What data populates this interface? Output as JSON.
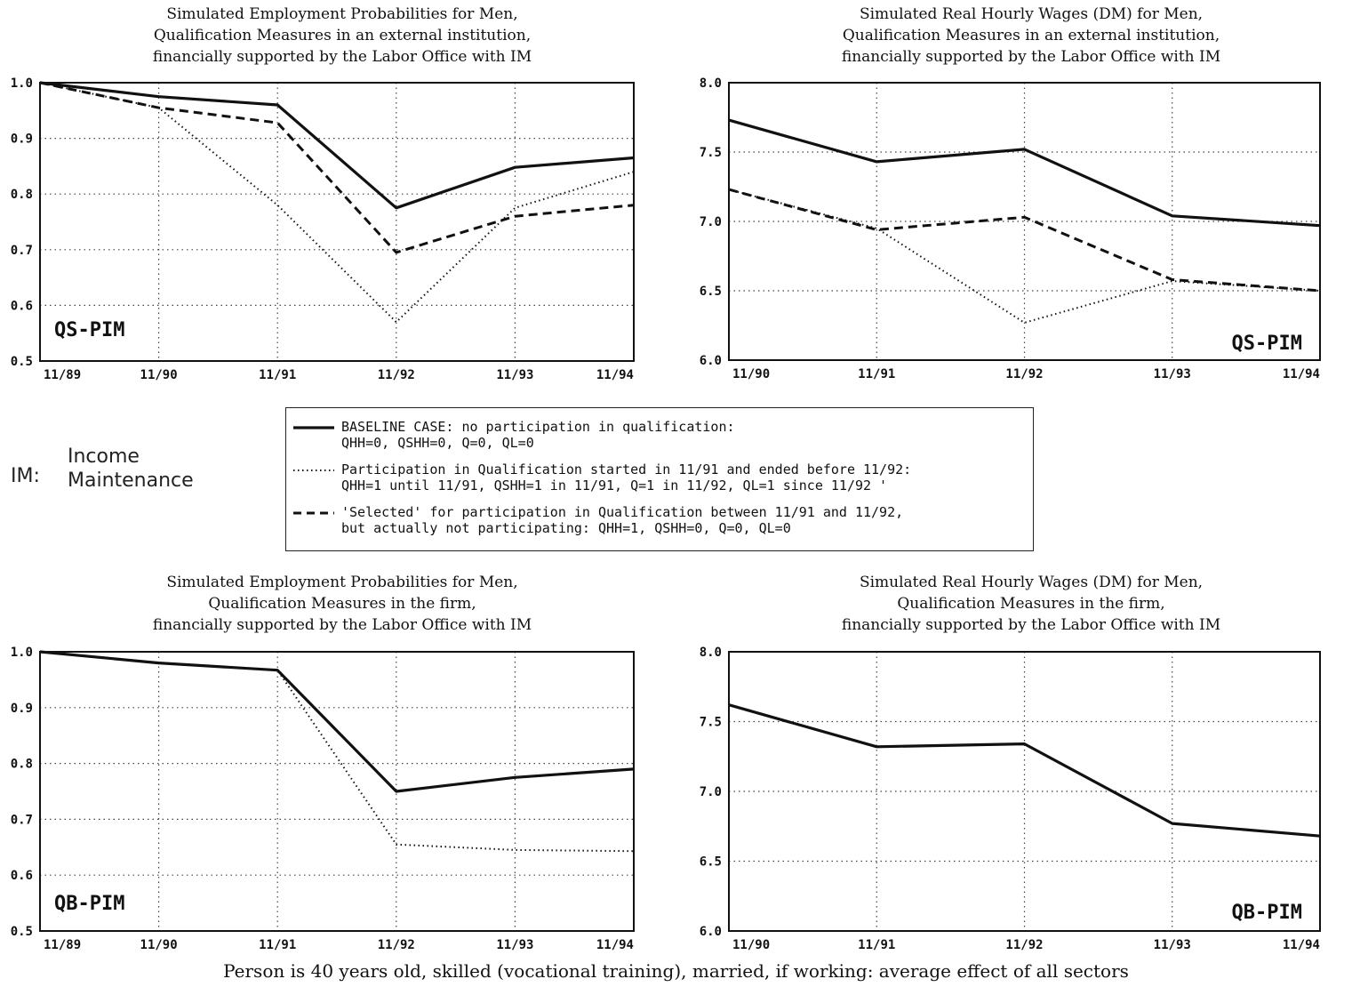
{
  "im_note": {
    "key": "IM:",
    "line1": "Income",
    "line2": "Maintenance"
  },
  "legend": [
    {
      "style": "solid",
      "line1": "BASELINE CASE: no participation in qualification:",
      "line2": "QHH=0, QSHH=0, Q=0, QL=0"
    },
    {
      "style": "dotted",
      "line1": "Participation in Qualification started in 11/91 and ended before 11/92:",
      "line2": "QHH=1 until 11/91, QSHH=1 in 11/91, Q=1 in 11/92, QL=1 since 11/92 '"
    },
    {
      "style": "dashed",
      "line1": "'Selected' for participation in Qualification between 11/91 and 11/92,",
      "line2": "but actually not participating: QHH=1, QSHH=0, Q=0, QL=0"
    }
  ],
  "footer": "Person is 40 years old, skilled (vocational training), married, if working: average effect of all sectors",
  "chart_data": [
    {
      "id": "top-left",
      "type": "line",
      "title_lines": [
        "Simulated Employment Probabilities for Men,",
        "Qualification Measures in an external institution,",
        "financially supported by the Labor Office with IM"
      ],
      "categories": [
        "11/89",
        "11/90",
        "11/91",
        "11/92",
        "11/93",
        "11/94"
      ],
      "ylim": [
        0.5,
        1.0
      ],
      "yticks": [
        "0.5",
        "0.6",
        "0.7",
        "0.8",
        "0.9",
        "1.0"
      ],
      "grid": true,
      "annotation": "QS-PIM",
      "series": [
        {
          "style": "solid",
          "values": [
            1.0,
            0.975,
            0.96,
            0.775,
            0.848,
            0.865
          ]
        },
        {
          "style": "dotted",
          "values": [
            1.0,
            0.955,
            0.78,
            0.57,
            0.775,
            0.84
          ]
        },
        {
          "style": "dashed",
          "values": [
            1.0,
            0.955,
            0.928,
            0.695,
            0.76,
            0.78
          ]
        }
      ]
    },
    {
      "id": "top-right",
      "type": "line",
      "title_lines": [
        "Simulated Real Hourly Wages (DM) for Men,",
        "Qualification Measures in an external institution,",
        "financially supported by the Labor Office with IM"
      ],
      "categories": [
        "11/90",
        "11/91",
        "11/92",
        "11/93",
        "11/94"
      ],
      "ylim": [
        6.0,
        8.0
      ],
      "yticks": [
        "6.0",
        "6.5",
        "7.0",
        "7.5",
        "8.0"
      ],
      "grid": true,
      "annotation": "QS-PIM",
      "series": [
        {
          "style": "solid",
          "values": [
            7.73,
            7.43,
            7.52,
            7.04,
            6.97
          ]
        },
        {
          "style": "dotted",
          "values": [
            7.23,
            6.95,
            6.27,
            6.57,
            6.5
          ]
        },
        {
          "style": "dashed",
          "values": [
            7.23,
            6.94,
            7.03,
            6.58,
            6.5
          ]
        }
      ]
    },
    {
      "id": "bottom-left",
      "type": "line",
      "title_lines": [
        "Simulated Employment Probabilities for Men,",
        "Qualification Measures in the firm,",
        "financially supported by the Labor Office with IM"
      ],
      "categories": [
        "11/89",
        "11/90",
        "11/91",
        "11/92",
        "11/93",
        "11/94"
      ],
      "ylim": [
        0.5,
        1.0
      ],
      "yticks": [
        "0.5",
        "0.6",
        "0.7",
        "0.8",
        "0.9",
        "1.0"
      ],
      "grid": true,
      "annotation": "QB-PIM",
      "series": [
        {
          "style": "solid",
          "values": [
            1.0,
            0.98,
            0.967,
            0.75,
            0.775,
            0.79
          ]
        },
        {
          "style": "dotted",
          "values": [
            1.0,
            0.98,
            0.967,
            0.655,
            0.645,
            0.643
          ]
        }
      ]
    },
    {
      "id": "bottom-right",
      "type": "line",
      "title_lines": [
        "Simulated Real Hourly Wages (DM) for Men,",
        "Qualification Measures in the firm,",
        "financially supported by the Labor Office with IM"
      ],
      "categories": [
        "11/90",
        "11/91",
        "11/92",
        "11/93",
        "11/94"
      ],
      "ylim": [
        6.0,
        8.0
      ],
      "yticks": [
        "6.0",
        "6.5",
        "7.0",
        "7.5",
        "8.0"
      ],
      "grid": true,
      "annotation": "QB-PIM",
      "series": [
        {
          "style": "solid",
          "values": [
            7.62,
            7.32,
            7.34,
            6.77,
            6.68
          ]
        }
      ]
    }
  ]
}
